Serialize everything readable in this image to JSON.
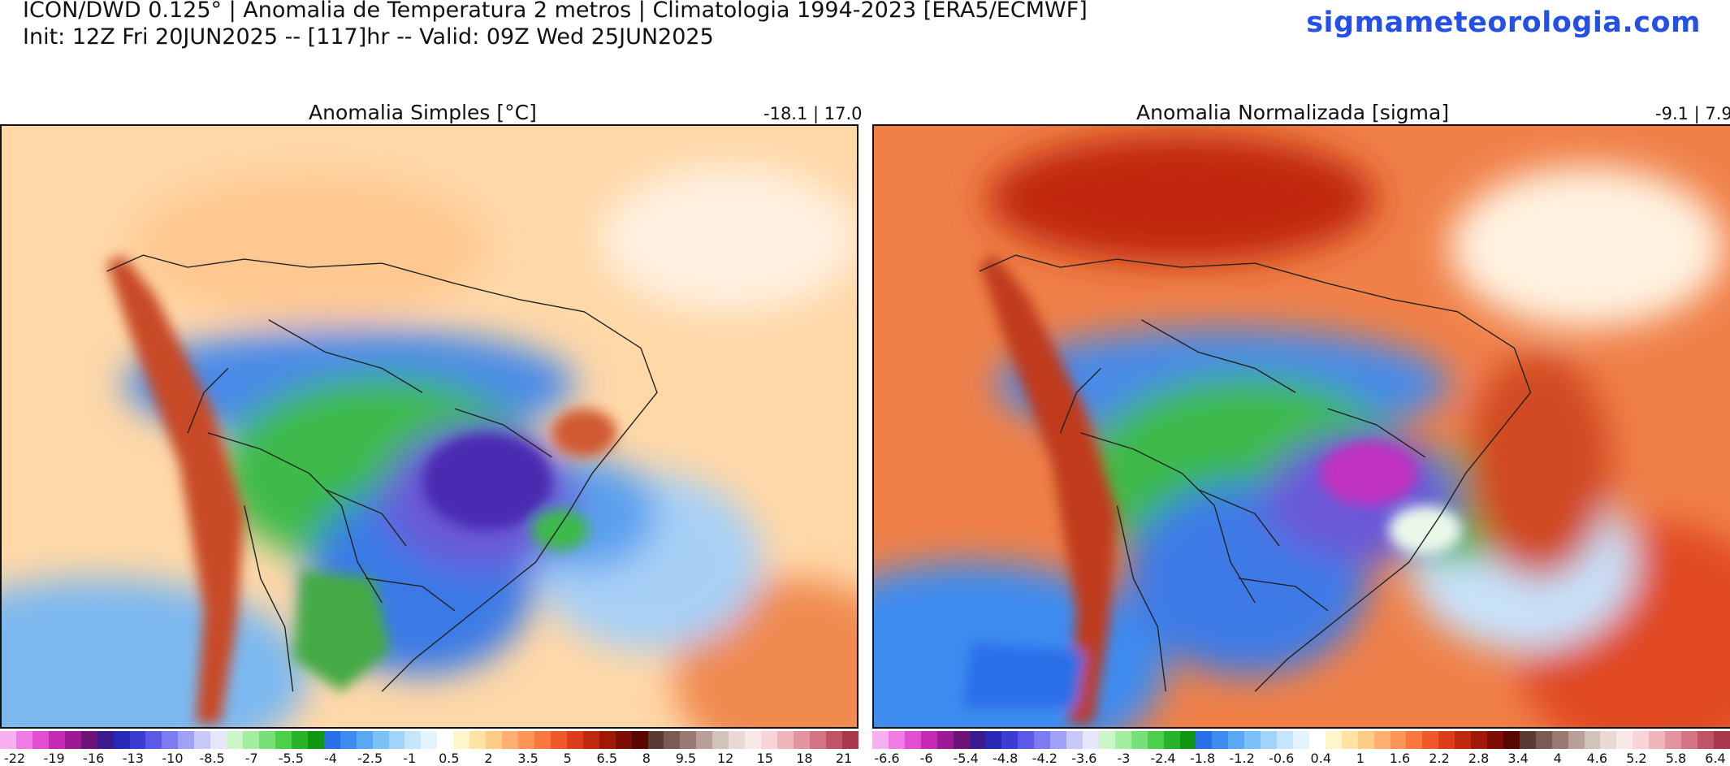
{
  "header": {
    "line1": "ICON/DWD 0.125° | Anomalia de Temperatura 2 metros | Climatologia 1994-2023 [ERA5/ECMWF]",
    "line2": "Init: 12Z Fri 20JUN2025 -- [117]hr -- Valid: 09Z Wed 25JUN2025",
    "site": "sigmameteorologia.com"
  },
  "panels": [
    {
      "title": "Anomalia Simples [°C]",
      "range": "-18.1 | 17.0",
      "ticks": [
        "-22",
        "-19",
        "-16",
        "-13",
        "-10",
        "-8.5",
        "-7",
        "-5.5",
        "-4",
        "-2.5",
        "-1",
        "0.5",
        "2",
        "3.5",
        "5",
        "6.5",
        "8",
        "9.5",
        "12",
        "15",
        "18",
        "21"
      ]
    },
    {
      "title": "Anomalia Normalizada [sigma]",
      "range": "-9.1 | 7.9",
      "ticks": [
        "-6.6",
        "-6",
        "-5.4",
        "-4.8",
        "-4.2",
        "-3.6",
        "-3",
        "-2.4",
        "-1.8",
        "-1.2",
        "-0.6",
        "0.4",
        "1",
        "1.6",
        "2.2",
        "2.8",
        "3.4",
        "4",
        "4.6",
        "5.2",
        "5.8",
        "6.4"
      ]
    }
  ],
  "colorbar": [
    "#f7b0f0",
    "#ef7ce4",
    "#e04fd0",
    "#c42ab4",
    "#9c1a94",
    "#6e1476",
    "#3a1a8c",
    "#2828b4",
    "#3c3cd2",
    "#5a5ae6",
    "#7c7cf0",
    "#a0a0f6",
    "#c8c8fa",
    "#e6e6fc",
    "#ccf5c8",
    "#a4eea0",
    "#78e078",
    "#4cd04c",
    "#28b428",
    "#129612",
    "#2a6ee8",
    "#3c8cf0",
    "#5aa8f4",
    "#7cc0f8",
    "#a0d4fa",
    "#c4e6fc",
    "#e4f4fe",
    "#ffffff",
    "#fff5cc",
    "#ffe4a6",
    "#ffcc88",
    "#ffb070",
    "#ff9458",
    "#fa7840",
    "#ee5a2c",
    "#dc3e1c",
    "#c02810",
    "#a01808",
    "#7c0e04",
    "#5a0600",
    "#5a3a32",
    "#7a5a52",
    "#9a7a72",
    "#b8a09a",
    "#d2c2bc",
    "#ead8d4",
    "#f8e8e8",
    "#f8d4d8",
    "#f0b4bc",
    "#e494a0",
    "#d47482",
    "#c05466",
    "#a8384c"
  ]
}
